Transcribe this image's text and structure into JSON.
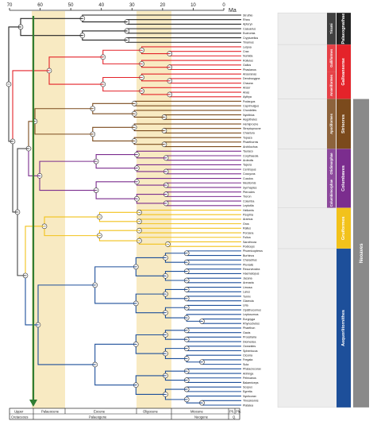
{
  "axis": {
    "unit": "Ma",
    "ticks": [
      "70",
      "60",
      "50",
      "40",
      "30",
      "20",
      "10",
      "0"
    ]
  },
  "taxa": [
    "Struthio",
    "Rhea",
    "Apteryx",
    "Casuarius",
    "Eudromia",
    "Crypturellus",
    "Tinamus",
    "Leipoa",
    "Crax",
    "Numida",
    "Rollulus",
    "Gallus",
    "Phasianus",
    "Anseranas",
    "Dendrocygna",
    "Chauna",
    "Anser",
    "Anas",
    "Aythya",
    "Podargus",
    "Caprimulgus",
    "Chordeiles",
    "Nyctibius",
    "Aegotheles",
    "Hemiprocne",
    "Streptoprocne",
    "Chaetura",
    "Topaza",
    "Phaethornis",
    "Archilochus",
    "Tauraco",
    "Corythaeola",
    "Ardeotis",
    "Tapera",
    "Centropus",
    "Coccyzus",
    "Cuculus",
    "Mesitornis",
    "Syrrhaptes",
    "Pterocles",
    "Treron",
    "Columba",
    "Leptotila",
    "Heliornis",
    "Psophia",
    "Aramus",
    "Grus",
    "Rallus",
    "Porzana",
    "Fulica",
    "Sarothrura",
    "Podiceps",
    "Phoenicopterus",
    "Burhinus",
    "Charadrius",
    "Pluvialis",
    "Recurvirostra",
    "Haematopus",
    "Jacana",
    "Arenaria",
    "Limosa",
    "Larus",
    "Turnix",
    "Glareola",
    "Uria",
    "Opisthocomus",
    "Leptosomus",
    "Eurypyga",
    "Rhynochetos",
    "Phaethon",
    "Gavia",
    "Procellaria",
    "Diomedea",
    "Oceanites",
    "Spheniscus",
    "Ciconia",
    "Fregata",
    "Sula",
    "Phalacrocorax",
    "Anhinga",
    "Pelecanus",
    "Balaeniceps",
    "Scopus",
    "Egretta",
    "Nycticorax",
    "Threskiornis",
    "Platalea"
  ],
  "groups": {
    "palaeognathae": "Palaeognathae",
    "tinami": "Tinami",
    "galliformes": "Galliformes",
    "galloanserae": "Galloanserae",
    "anseriformes": "Anseriformes",
    "strisores": "Strisores",
    "apodiformes": "Apodiformes",
    "otidimorphae": "Otidimorphae",
    "columbimorphae": "Columbimorphae",
    "columbaves": "Columbaves",
    "gruiformes": "Gruiformes",
    "aequornithes": "Aequorlitornithes",
    "neoaves": "Neoaves"
  },
  "timescale": {
    "periods": [
      "Cretaceous",
      "Palaeogene",
      "Neogene",
      "Q."
    ],
    "epochs": [
      "Upper",
      "Palaeocene",
      "Eocene",
      "Oligocene",
      "Miocene",
      "Pli.",
      "Ple."
    ]
  },
  "colors": {
    "palaeognathae": "#222222",
    "galloanserae": "#e4232a",
    "strisores": "#7b4a1c",
    "columbaves": "#7b2d8e",
    "gruiformes": "#f2c21b",
    "aequornithes": "#1d4f9a",
    "shade": "#f7e6b6",
    "kpg": "#2f7d32"
  }
}
